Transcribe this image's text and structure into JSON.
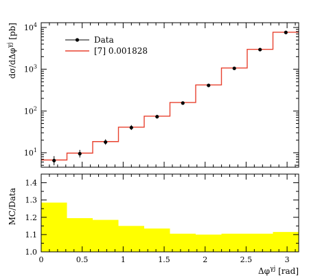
{
  "chart_data": [
    {
      "type": "line",
      "panel": "main",
      "ylabel": "dσ/dΔφ^γj [pb]",
      "yscale": "log",
      "ylim": [
        4.5,
        13000
      ],
      "xlim": [
        0,
        3.1416
      ],
      "y_major_ticks": [
        {
          "value": 10,
          "label": "10",
          "exp": "1"
        },
        {
          "value": 100,
          "label": "10",
          "exp": "2"
        },
        {
          "value": 1000,
          "label": "10",
          "exp": "3"
        },
        {
          "value": 10000,
          "label": "10",
          "exp": "4"
        }
      ],
      "bin_edges": [
        0,
        0.3142,
        0.6283,
        0.9425,
        1.2566,
        1.5708,
        1.885,
        2.1991,
        2.5133,
        2.8274,
        3.1416
      ],
      "series": [
        {
          "name": "Data",
          "kind": "points",
          "color": "#000000",
          "x": [
            0.157,
            0.471,
            0.785,
            1.1,
            1.414,
            1.728,
            2.042,
            2.356,
            2.67,
            2.985
          ],
          "values": [
            6.5,
            9.5,
            18,
            40,
            73,
            155,
            410,
            1050,
            2950,
            7600
          ],
          "err_low": [
            1.5,
            1.8,
            2.5,
            5,
            7,
            10,
            20,
            40,
            100,
            250
          ],
          "err_high": [
            1.8,
            2.2,
            3,
            6,
            8,
            12,
            25,
            50,
            120,
            300
          ]
        },
        {
          "name": "[7] 0.001828",
          "kind": "histogram",
          "color": "#e8412e",
          "values": [
            6.7,
            9.8,
            18.5,
            41,
            75,
            160,
            420,
            1070,
            3000,
            7700
          ]
        }
      ]
    },
    {
      "type": "area",
      "panel": "ratio",
      "ylabel": "MC/Data",
      "xlabel": "Δφ^γj [rad]",
      "ylim": [
        1.0,
        1.45
      ],
      "xlim": [
        0,
        3.1416
      ],
      "y_ticks": [
        1.0,
        1.1,
        1.2,
        1.3,
        1.4
      ],
      "y_tick_labels": [
        "1.0",
        "1.1",
        "1.2",
        "1.3",
        "1.4"
      ],
      "x_ticks": [
        0,
        0.5,
        1,
        1.5,
        2,
        2.5,
        3
      ],
      "x_tick_labels": [
        "0",
        "0.5",
        "1",
        "1.5",
        "2",
        "2.5",
        "3"
      ],
      "bin_edges": [
        0,
        0.3142,
        0.6283,
        0.9425,
        1.2566,
        1.5708,
        1.885,
        2.1991,
        2.5133,
        2.8274,
        3.1416
      ],
      "band_values": [
        1.285,
        1.195,
        1.185,
        1.15,
        1.135,
        1.105,
        1.1,
        1.105,
        1.105,
        1.115
      ],
      "band_color": "#ffff00"
    }
  ]
}
